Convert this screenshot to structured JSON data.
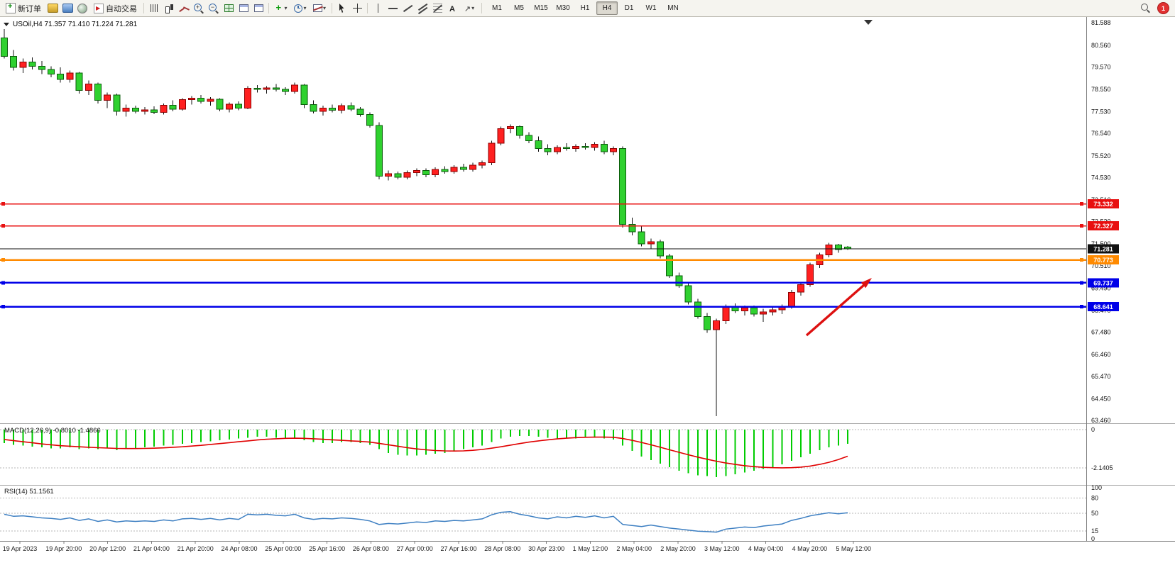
{
  "toolbar": {
    "new_order_label": "新订单",
    "auto_trading_label": "自动交易",
    "timeframes": [
      "M1",
      "M5",
      "M15",
      "M30",
      "H1",
      "H4",
      "D1",
      "W1",
      "MN"
    ],
    "active_timeframe": "H4",
    "notification_count": "1"
  },
  "chart": {
    "title": "USOil,H4 71.357 71.410 71.224 71.281",
    "symbol": "USOil",
    "period": "H4",
    "ohlc": {
      "open": "71.357",
      "high": "71.410",
      "low": "71.224",
      "close": "71.281"
    },
    "colors": {
      "up": "#ff2020",
      "up_border": "#8e0000",
      "down": "#2fd12f",
      "down_border": "#0b5d0b",
      "wick": "#111111",
      "macd_hist": "#00cc00",
      "macd_signal": "#e00000",
      "rsi_line": "#3d7fc2",
      "line_red": "#e81010",
      "line_blue": "#0000e8",
      "line_orange": "#ff8a00",
      "price_line": "#111111",
      "arrow": "#dd1010"
    },
    "price_axis_labels": [
      "81.588",
      "80.560",
      "79.570",
      "78.550",
      "77.530",
      "76.540",
      "75.520",
      "74.530",
      "73.510",
      "72.520",
      "71.500",
      "70.510",
      "69.490",
      "68.470",
      "67.480",
      "66.460",
      "65.470",
      "64.450",
      "63.460"
    ],
    "time_axis_labels": [
      "19 Apr 2023",
      "19 Apr 20:00",
      "20 Apr 12:00",
      "21 Apr 04:00",
      "21 Apr 20:00",
      "24 Apr 08:00",
      "25 Apr 00:00",
      "25 Apr 16:00",
      "26 Apr 08:00",
      "27 Apr 00:00",
      "27 Apr 16:00",
      "28 Apr 08:00",
      "30 Apr 23:00",
      "1 May 12:00",
      "2 May 04:00",
      "2 May 20:00",
      "3 May 12:00",
      "4 May 04:00",
      "4 May 20:00",
      "5 May 12:00"
    ],
    "price_lines": [
      {
        "label": "73.332",
        "value": 73.332,
        "color": "#e81010",
        "width": 1.5,
        "handles": true
      },
      {
        "label": "72.327",
        "value": 72.327,
        "color": "#e81010",
        "width": 1.5,
        "handles": true
      },
      {
        "label": "71.281",
        "value": 71.281,
        "color": "#111111",
        "width": 1,
        "handles": false
      },
      {
        "label": "70.773",
        "value": 70.773,
        "color": "#ff8a00",
        "width": 2.5,
        "handles": true
      },
      {
        "label": "69.737",
        "value": 69.737,
        "color": "#0000e8",
        "width": 2.5,
        "handles": true
      },
      {
        "label": "68.641",
        "value": 68.641,
        "color": "#0000e8",
        "width": 2.5,
        "handles": true
      }
    ]
  },
  "chart_data": {
    "type": "candlestick",
    "title": "USOil H4 with MACD and RSI",
    "price_range": [
      63.46,
      81.588
    ],
    "candles": [
      [
        80.9,
        81.3,
        79.95,
        80.05
      ],
      [
        80.05,
        80.35,
        79.4,
        79.55
      ],
      [
        79.55,
        79.95,
        79.3,
        79.8
      ],
      [
        79.8,
        80.0,
        79.45,
        79.6
      ],
      [
        79.6,
        79.85,
        79.25,
        79.45
      ],
      [
        79.45,
        79.6,
        79.1,
        79.25
      ],
      [
        79.25,
        79.55,
        78.85,
        79.0
      ],
      [
        79.0,
        79.4,
        78.85,
        79.3
      ],
      [
        79.3,
        79.35,
        78.35,
        78.5
      ],
      [
        78.5,
        78.95,
        78.3,
        78.8
      ],
      [
        78.8,
        78.85,
        77.9,
        78.05
      ],
      [
        78.05,
        78.4,
        77.7,
        78.3
      ],
      [
        78.3,
        78.35,
        77.35,
        77.55
      ],
      [
        77.55,
        77.85,
        77.3,
        77.7
      ],
      [
        77.7,
        77.8,
        77.45,
        77.55
      ],
      [
        77.55,
        77.75,
        77.4,
        77.62
      ],
      [
        77.62,
        77.78,
        77.42,
        77.5
      ],
      [
        77.5,
        77.9,
        77.4,
        77.82
      ],
      [
        77.82,
        78.05,
        77.55,
        77.65
      ],
      [
        77.65,
        78.15,
        77.58,
        78.08
      ],
      [
        78.08,
        78.25,
        77.85,
        78.15
      ],
      [
        78.15,
        78.3,
        77.9,
        78.0
      ],
      [
        78.0,
        78.2,
        77.8,
        78.1
      ],
      [
        78.1,
        78.15,
        77.55,
        77.65
      ],
      [
        77.65,
        77.95,
        77.5,
        77.88
      ],
      [
        77.88,
        78.0,
        77.6,
        77.7
      ],
      [
        77.7,
        78.7,
        77.65,
        78.6
      ],
      [
        78.6,
        78.75,
        78.4,
        78.55
      ],
      [
        78.55,
        78.7,
        78.35,
        78.62
      ],
      [
        78.62,
        78.8,
        78.45,
        78.55
      ],
      [
        78.55,
        78.65,
        78.3,
        78.45
      ],
      [
        78.45,
        78.85,
        78.35,
        78.75
      ],
      [
        78.75,
        78.8,
        77.7,
        77.85
      ],
      [
        77.85,
        78.05,
        77.45,
        77.55
      ],
      [
        77.55,
        77.8,
        77.35,
        77.7
      ],
      [
        77.7,
        77.85,
        77.5,
        77.6
      ],
      [
        77.6,
        77.9,
        77.45,
        77.8
      ],
      [
        77.8,
        77.95,
        77.55,
        77.65
      ],
      [
        77.65,
        77.75,
        77.3,
        77.4
      ],
      [
        77.4,
        77.5,
        76.8,
        76.9
      ],
      [
        76.9,
        77.05,
        74.45,
        74.6
      ],
      [
        74.6,
        74.85,
        74.4,
        74.7
      ],
      [
        74.7,
        74.8,
        74.45,
        74.55
      ],
      [
        74.55,
        74.85,
        74.45,
        74.75
      ],
      [
        74.75,
        74.95,
        74.6,
        74.85
      ],
      [
        74.85,
        74.95,
        74.55,
        74.65
      ],
      [
        74.65,
        75.0,
        74.55,
        74.9
      ],
      [
        74.9,
        75.05,
        74.7,
        74.8
      ],
      [
        74.8,
        75.1,
        74.7,
        75.0
      ],
      [
        75.0,
        75.15,
        74.8,
        74.9
      ],
      [
        74.9,
        75.2,
        74.8,
        75.1
      ],
      [
        75.1,
        75.3,
        74.95,
        75.2
      ],
      [
        75.2,
        76.2,
        75.1,
        76.1
      ],
      [
        76.1,
        76.85,
        76.0,
        76.75
      ],
      [
        76.75,
        76.95,
        76.55,
        76.85
      ],
      [
        76.85,
        76.9,
        76.3,
        76.45
      ],
      [
        76.45,
        76.6,
        76.1,
        76.2
      ],
      [
        76.2,
        76.4,
        75.7,
        75.85
      ],
      [
        75.85,
        76.05,
        75.55,
        75.7
      ],
      [
        75.7,
        76.0,
        75.6,
        75.9
      ],
      [
        75.9,
        76.1,
        75.75,
        75.85
      ],
      [
        75.85,
        76.05,
        75.7,
        75.95
      ],
      [
        75.95,
        76.1,
        75.8,
        75.9
      ],
      [
        75.9,
        76.15,
        75.75,
        76.05
      ],
      [
        76.05,
        76.2,
        75.6,
        75.7
      ],
      [
        75.7,
        75.95,
        75.55,
        75.85
      ],
      [
        75.85,
        75.95,
        72.25,
        72.4
      ],
      [
        72.4,
        72.7,
        71.9,
        72.05
      ],
      [
        72.05,
        72.3,
        71.4,
        71.5
      ],
      [
        71.5,
        71.75,
        71.3,
        71.6
      ],
      [
        71.6,
        71.7,
        70.85,
        70.95
      ],
      [
        70.95,
        71.05,
        69.95,
        70.05
      ],
      [
        70.05,
        70.2,
        69.5,
        69.6
      ],
      [
        69.6,
        69.75,
        68.75,
        68.85
      ],
      [
        68.85,
        69.0,
        68.1,
        68.2
      ],
      [
        68.2,
        68.35,
        67.45,
        67.6
      ],
      [
        67.6,
        68.1,
        63.66,
        68.0
      ],
      [
        68.0,
        68.75,
        67.85,
        68.65
      ],
      [
        68.65,
        68.8,
        68.35,
        68.45
      ],
      [
        68.45,
        68.7,
        68.25,
        68.6
      ],
      [
        68.6,
        68.7,
        68.2,
        68.3
      ],
      [
        68.3,
        68.55,
        67.95,
        68.4
      ],
      [
        68.4,
        68.6,
        68.25,
        68.5
      ],
      [
        68.5,
        68.75,
        68.3,
        68.65
      ],
      [
        68.65,
        69.4,
        68.55,
        69.3
      ],
      [
        69.3,
        69.75,
        69.15,
        69.65
      ],
      [
        69.65,
        70.65,
        69.55,
        70.55
      ],
      [
        70.55,
        71.1,
        70.4,
        71.0
      ],
      [
        71.0,
        71.55,
        70.9,
        71.45
      ],
      [
        71.45,
        71.5,
        71.1,
        71.25
      ],
      [
        71.357,
        71.41,
        71.224,
        71.281
      ]
    ],
    "macd": {
      "label": "MACD(12,26,9)",
      "main_value": "-0.8010",
      "signal_value": "-1.4866",
      "axis_labels": [
        "0",
        "-2.1405"
      ],
      "histogram": [
        -0.75,
        -0.85,
        -0.9,
        -0.95,
        -1.0,
        -1.05,
        -1.05,
        -1.0,
        -1.1,
        -1.05,
        -1.1,
        -1.05,
        -1.15,
        -1.1,
        -1.05,
        -1.0,
        -0.95,
        -0.9,
        -0.85,
        -0.8,
        -0.75,
        -0.7,
        -0.65,
        -0.6,
        -0.55,
        -0.5,
        -0.45,
        -0.4,
        -0.4,
        -0.45,
        -0.5,
        -0.5,
        -0.6,
        -0.7,
        -0.75,
        -0.75,
        -0.7,
        -0.7,
        -0.75,
        -0.85,
        -1.1,
        -1.3,
        -1.4,
        -1.45,
        -1.45,
        -1.4,
        -1.35,
        -1.3,
        -1.2,
        -1.1,
        -1.0,
        -0.9,
        -0.7,
        -0.5,
        -0.4,
        -0.35,
        -0.35,
        -0.4,
        -0.45,
        -0.5,
        -0.5,
        -0.5,
        -0.45,
        -0.45,
        -0.5,
        -0.55,
        -0.9,
        -1.2,
        -1.5,
        -1.7,
        -1.9,
        -2.1,
        -2.3,
        -2.45,
        -2.55,
        -2.6,
        -2.65,
        -2.6,
        -2.5,
        -2.4,
        -2.3,
        -2.2,
        -2.1,
        -1.95,
        -1.75,
        -1.55,
        -1.35,
        -1.15,
        -1.0,
        -0.9,
        -0.801
      ],
      "signal": [
        -0.55,
        -0.62,
        -0.68,
        -0.74,
        -0.8,
        -0.85,
        -0.9,
        -0.93,
        -0.96,
        -0.99,
        -1.01,
        -1.03,
        -1.05,
        -1.06,
        -1.06,
        -1.05,
        -1.04,
        -1.02,
        -0.99,
        -0.96,
        -0.92,
        -0.88,
        -0.83,
        -0.78,
        -0.73,
        -0.68,
        -0.63,
        -0.58,
        -0.54,
        -0.51,
        -0.49,
        -0.48,
        -0.49,
        -0.51,
        -0.54,
        -0.57,
        -0.6,
        -0.63,
        -0.66,
        -0.7,
        -0.77,
        -0.85,
        -0.93,
        -1.01,
        -1.08,
        -1.13,
        -1.17,
        -1.19,
        -1.2,
        -1.19,
        -1.16,
        -1.11,
        -1.04,
        -0.96,
        -0.87,
        -0.78,
        -0.7,
        -0.63,
        -0.57,
        -0.52,
        -0.48,
        -0.45,
        -0.43,
        -0.42,
        -0.42,
        -0.43,
        -0.5,
        -0.6,
        -0.72,
        -0.85,
        -0.99,
        -1.13,
        -1.27,
        -1.41,
        -1.54,
        -1.66,
        -1.77,
        -1.87,
        -1.95,
        -2.02,
        -2.07,
        -2.11,
        -2.13,
        -2.14,
        -2.13,
        -2.1,
        -2.04,
        -1.95,
        -1.83,
        -1.68,
        -1.4866
      ]
    },
    "rsi": {
      "label": "RSI(14)",
      "value": "51.1561",
      "axis_labels": [
        "100",
        "80",
        "50",
        "15",
        "0"
      ],
      "levels": [
        80,
        50,
        15
      ],
      "values": [
        48,
        44,
        45,
        43,
        41,
        40,
        38,
        41,
        36,
        39,
        34,
        37,
        33,
        35,
        34,
        35,
        34,
        37,
        35,
        39,
        40,
        38,
        40,
        37,
        40,
        38,
        48,
        47,
        48,
        46,
        45,
        48,
        41,
        38,
        40,
        39,
        41,
        40,
        38,
        35,
        28,
        30,
        29,
        31,
        33,
        32,
        35,
        34,
        36,
        35,
        37,
        39,
        47,
        52,
        53,
        48,
        45,
        41,
        39,
        43,
        41,
        44,
        42,
        45,
        41,
        44,
        28,
        26,
        24,
        27,
        24,
        21,
        19,
        17,
        15,
        14,
        13,
        19,
        21,
        23,
        22,
        25,
        27,
        29,
        36,
        40,
        45,
        48,
        51,
        49,
        51.16
      ]
    },
    "annotation_arrow": {
      "direction": "up-right",
      "color": "#dd1010"
    }
  }
}
